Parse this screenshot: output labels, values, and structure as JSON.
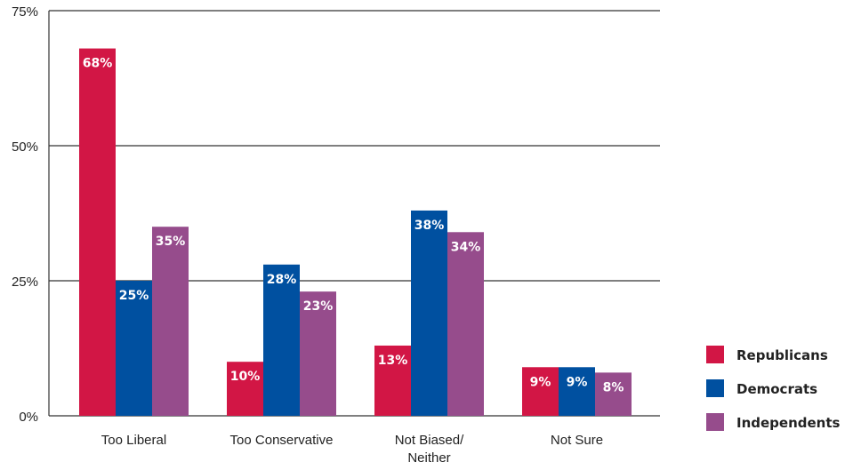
{
  "chart_data": {
    "type": "bar",
    "title": "",
    "xlabel": "",
    "ylabel": "",
    "ylim": [
      0,
      75
    ],
    "yticks": [
      0,
      25,
      50,
      75
    ],
    "ytick_labels": [
      "0%",
      "25%",
      "50%",
      "75%"
    ],
    "grid": true,
    "legend_position": "right",
    "categories": [
      [
        "Too Liberal"
      ],
      [
        "Too Conservative"
      ],
      [
        "Not Biased/",
        "Neither"
      ],
      [
        "Not Sure"
      ]
    ],
    "series": [
      {
        "name": "Republicans",
        "color": "#d21645",
        "values": [
          68,
          10,
          13,
          9
        ],
        "labels": [
          "68%",
          "10%",
          "13%",
          "9%"
        ]
      },
      {
        "name": "Democrats",
        "color": "#0050a0",
        "values": [
          25,
          28,
          38,
          9
        ],
        "labels": [
          "25%",
          "28%",
          "38%",
          "9%"
        ]
      },
      {
        "name": "Independents",
        "color": "#964c8c",
        "values": [
          35,
          23,
          34,
          8
        ],
        "labels": [
          "35%",
          "23%",
          "34%",
          "8%"
        ]
      }
    ]
  }
}
